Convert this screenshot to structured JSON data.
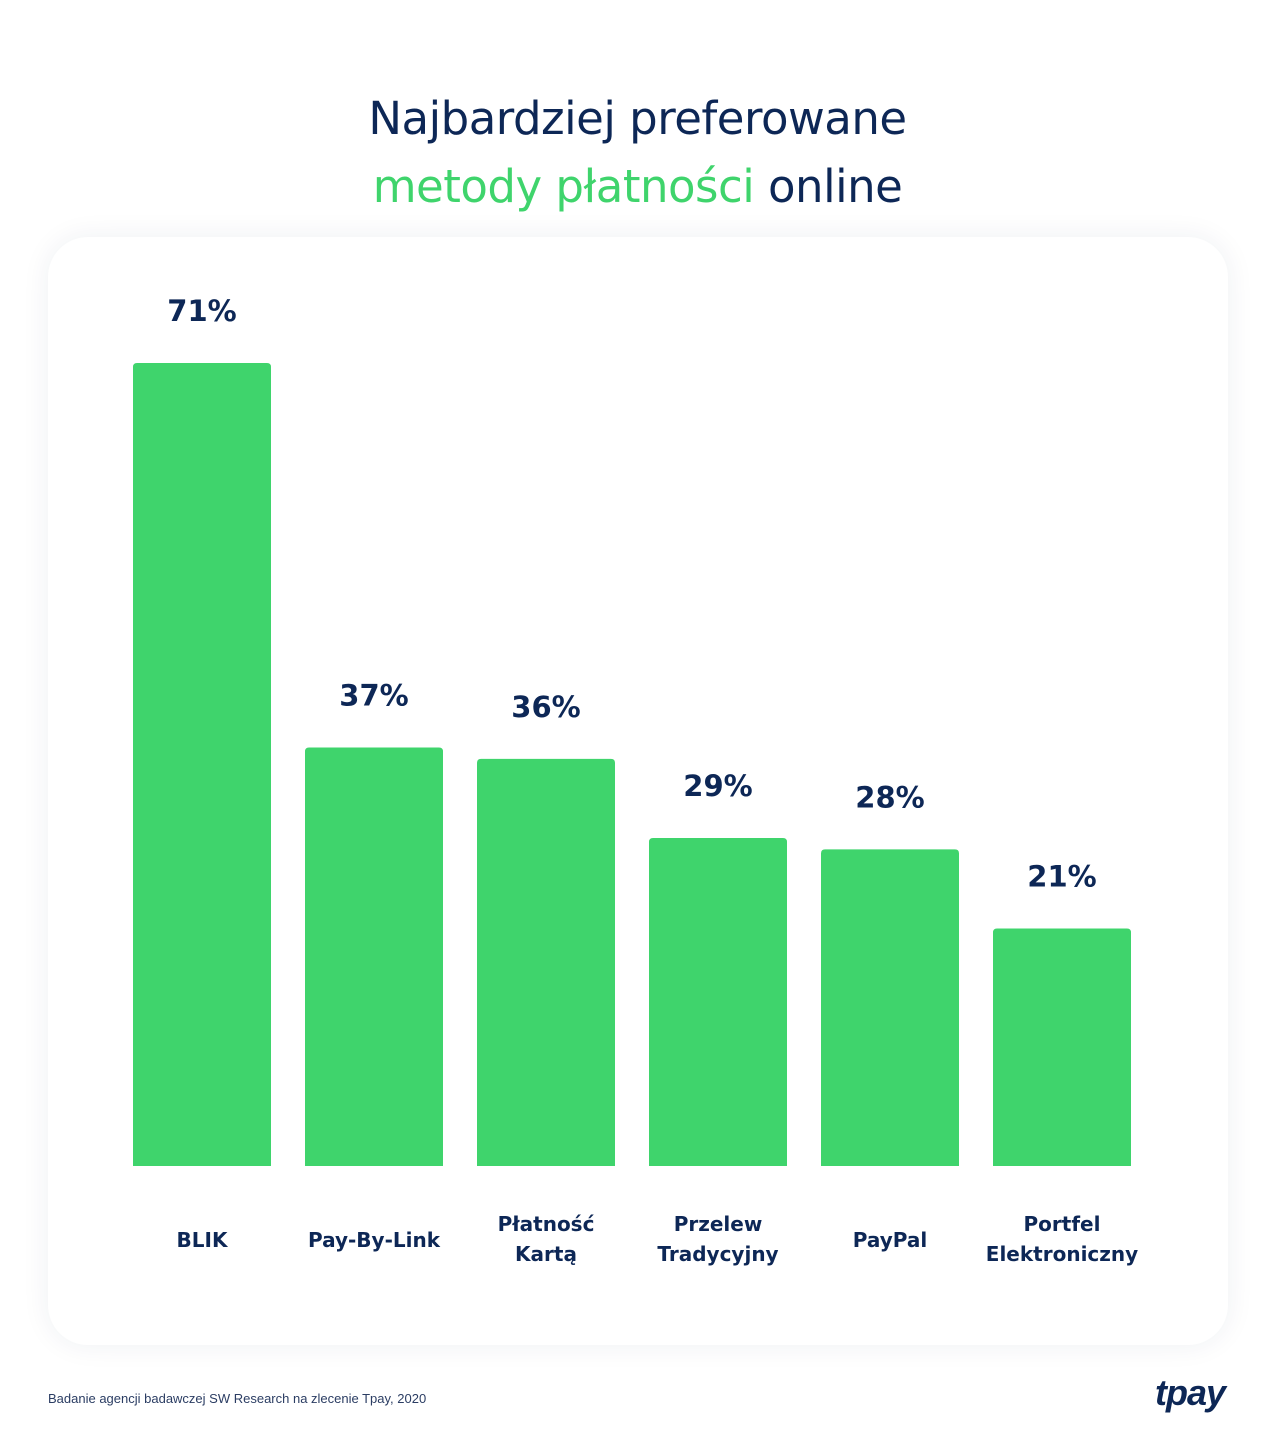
{
  "title": {
    "line1": "Najbardziej preferowane",
    "line2_accent": "metody płatności",
    "line2_rest": " online"
  },
  "colors": {
    "bar": "#3fd46c",
    "text": "#0d2756",
    "accent": "#3fd46c"
  },
  "chart_data": {
    "type": "bar",
    "title": "Najbardziej preferowane metody płatności online",
    "categories": [
      [
        "BLIK"
      ],
      [
        "Pay-By-Link"
      ],
      [
        "Płatność",
        "Kartą"
      ],
      [
        "Przelew",
        "Tradycyjny"
      ],
      [
        "PayPal"
      ],
      [
        "Portfel",
        "Elektroniczny"
      ]
    ],
    "values": [
      71,
      37,
      36,
      29,
      28,
      21
    ],
    "labels": [
      "71%",
      "37%",
      "36%",
      "29%",
      "28%",
      "21%"
    ],
    "ylim": [
      0,
      71
    ],
    "grid": false
  },
  "footer": {
    "source": "Badanie agencji badawczej SW Research na zlecenie Tpay, 2020",
    "logo": "tpay"
  }
}
